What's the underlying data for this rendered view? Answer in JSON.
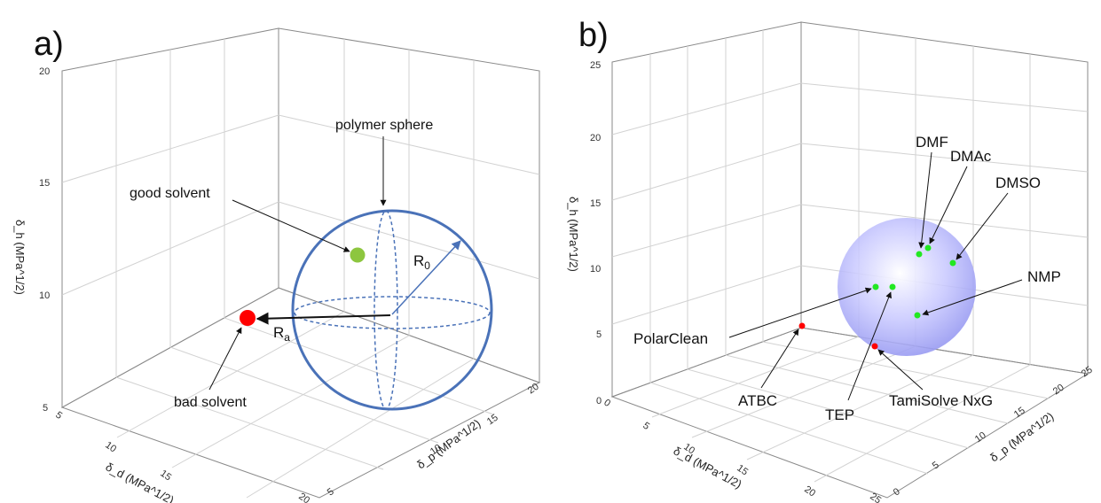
{
  "chart_data": [
    {
      "panel": "a)",
      "type": "scatter",
      "zlabel": "δ_h (MPa^1/2)",
      "xlabel": "δ_d (MPa^1/2)",
      "ylabel": "δ_p (MPa^1/2)",
      "z_ticks": [
        "5",
        "10",
        "15",
        "20"
      ],
      "x_ticks": [
        "5",
        "10",
        "15",
        "20"
      ],
      "y_ticks": [
        "5",
        "10",
        "15",
        "20"
      ],
      "annotations": {
        "polymer_sphere": "polymer sphere",
        "good_solvent": "good solvent",
        "bad_solvent": "bad solvent",
        "R0": "R",
        "R0_sub": "0",
        "Ra": "R",
        "Ra_sub": "a"
      },
      "points": [
        {
          "name": "good solvent",
          "color": "#8dc63f"
        },
        {
          "name": "bad solvent",
          "color": "#ff0000"
        }
      ],
      "sphere_color": "#4a72b8"
    },
    {
      "panel": "b)",
      "type": "scatter",
      "zlabel": "δ_h (MPa^1/2)",
      "xlabel": "δ_d (MPa^1/2)",
      "ylabel": "δ_p (MPa^1/2)",
      "z_ticks": [
        "0",
        "5",
        "10",
        "15",
        "20",
        "25"
      ],
      "x_ticks": [
        "0",
        "5",
        "10",
        "15",
        "20",
        "25"
      ],
      "y_ticks": [
        "0",
        "5",
        "10",
        "15",
        "20",
        "25"
      ],
      "points": [
        {
          "name": "DMF",
          "color": "#22e822"
        },
        {
          "name": "DMAc",
          "color": "#22e822"
        },
        {
          "name": "DMSO",
          "color": "#22e822"
        },
        {
          "name": "NMP",
          "color": "#22e822"
        },
        {
          "name": "PolarClean",
          "color": "#22e822"
        },
        {
          "name": "TEP",
          "color": "#22e822"
        },
        {
          "name": "ATBC",
          "color": "#ff0000"
        },
        {
          "name": "TamiSolve NxG",
          "color": "#ff0000"
        }
      ],
      "sphere_color": "#b8b8ff"
    }
  ]
}
